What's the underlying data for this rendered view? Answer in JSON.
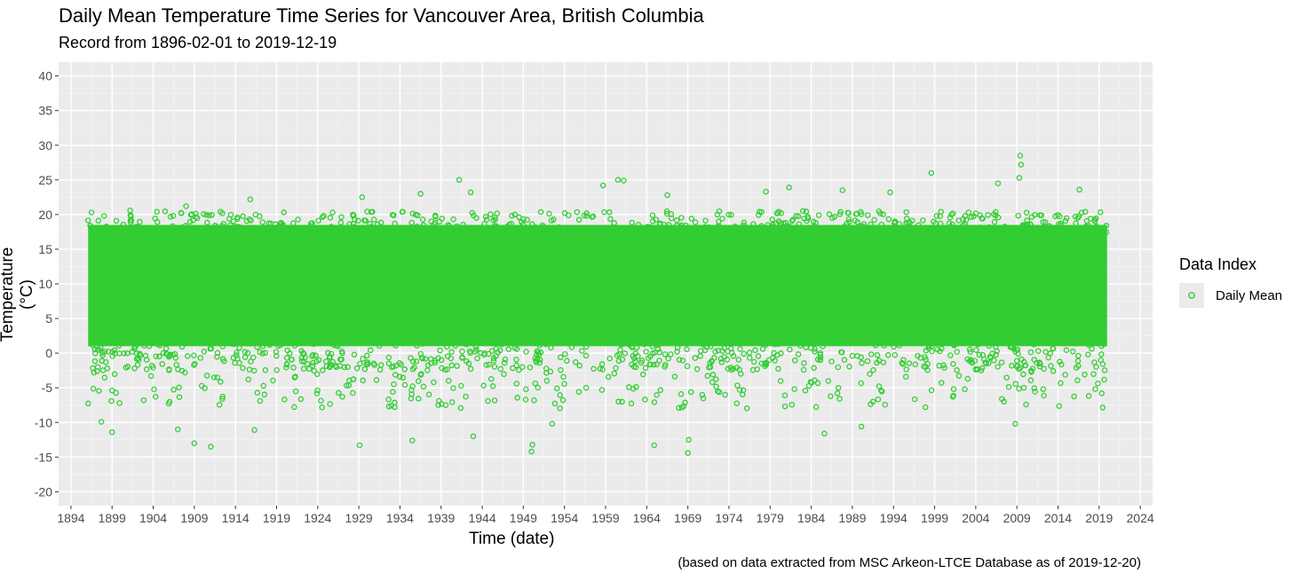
{
  "chart_data": {
    "type": "scatter",
    "title": "Daily Mean Temperature Time Series for Vancouver Area, British Columbia",
    "subtitle": "Record from 1896-02-01 to 2019-12-19",
    "xlabel": "Time (date)",
    "ylabel": "Temperature (°C)",
    "caption": "(based on data extracted from MSC Arkeon-LTCE Database as of 2019-12-20)",
    "xlim": [
      1892.5,
      2025.5
    ],
    "ylim": [
      -22,
      42
    ],
    "xticks": [
      "1894",
      "1899",
      "1904",
      "1909",
      "1914",
      "1919",
      "1924",
      "1929",
      "1934",
      "1939",
      "1944",
      "1949",
      "1954",
      "1959",
      "1964",
      "1969",
      "1974",
      "1979",
      "1984",
      "1989",
      "1994",
      "1999",
      "2004",
      "2009",
      "2014",
      "2019",
      "2024"
    ],
    "yticks": [
      "-20",
      "-15",
      "-10",
      "-5",
      "0",
      "5",
      "10",
      "15",
      "20",
      "25",
      "30",
      "35",
      "40"
    ],
    "grid": true,
    "legend": {
      "title": "Data Index",
      "position": "right",
      "entries": [
        "Daily Mean"
      ]
    },
    "series": [
      {
        "name": "Daily Mean",
        "color": "#32cd32",
        "marker": "open-circle",
        "x_start": "1896-02-01",
        "x_end": "2019-12-19",
        "typical_range": [
          -2,
          20
        ],
        "approx_peak_max": 28.5,
        "approx_min": -14.5
      }
    ],
    "notable_points": [
      {
        "x": 1896.5,
        "y": 20.3
      },
      {
        "x": 1901.2,
        "y": 20.6
      },
      {
        "x": 1908.0,
        "y": 21.2
      },
      {
        "x": 1915.8,
        "y": 22.2
      },
      {
        "x": 1929.4,
        "y": 22.5
      },
      {
        "x": 1936.5,
        "y": 23.0
      },
      {
        "x": 1941.2,
        "y": 25.0
      },
      {
        "x": 1942.6,
        "y": 23.2
      },
      {
        "x": 1958.7,
        "y": 24.2
      },
      {
        "x": 1960.5,
        "y": 25.0
      },
      {
        "x": 1961.2,
        "y": 24.9
      },
      {
        "x": 1966.5,
        "y": 22.8
      },
      {
        "x": 1978.5,
        "y": 23.3
      },
      {
        "x": 1981.3,
        "y": 23.9
      },
      {
        "x": 1987.8,
        "y": 23.5
      },
      {
        "x": 1993.6,
        "y": 23.2
      },
      {
        "x": 1998.6,
        "y": 26.0
      },
      {
        "x": 2006.7,
        "y": 24.5
      },
      {
        "x": 2009.4,
        "y": 28.5
      },
      {
        "x": 2009.5,
        "y": 27.2
      },
      {
        "x": 2009.3,
        "y": 25.3
      },
      {
        "x": 2016.6,
        "y": 23.6
      },
      {
        "x": 1897.7,
        "y": -9.9
      },
      {
        "x": 1899.0,
        "y": -11.4
      },
      {
        "x": 1907.0,
        "y": -11.0
      },
      {
        "x": 1909.0,
        "y": -13.0
      },
      {
        "x": 1911.0,
        "y": -13.5
      },
      {
        "x": 1916.3,
        "y": -11.1
      },
      {
        "x": 1929.1,
        "y": -13.3
      },
      {
        "x": 1935.5,
        "y": -12.6
      },
      {
        "x": 1942.9,
        "y": -12.0
      },
      {
        "x": 1950.0,
        "y": -14.2
      },
      {
        "x": 1950.1,
        "y": -13.2
      },
      {
        "x": 1952.5,
        "y": -10.2
      },
      {
        "x": 1964.9,
        "y": -13.3
      },
      {
        "x": 1969.0,
        "y": -14.4
      },
      {
        "x": 1969.1,
        "y": -12.5
      },
      {
        "x": 1985.6,
        "y": -11.6
      },
      {
        "x": 1990.1,
        "y": -10.6
      },
      {
        "x": 2008.8,
        "y": -10.2
      }
    ]
  }
}
